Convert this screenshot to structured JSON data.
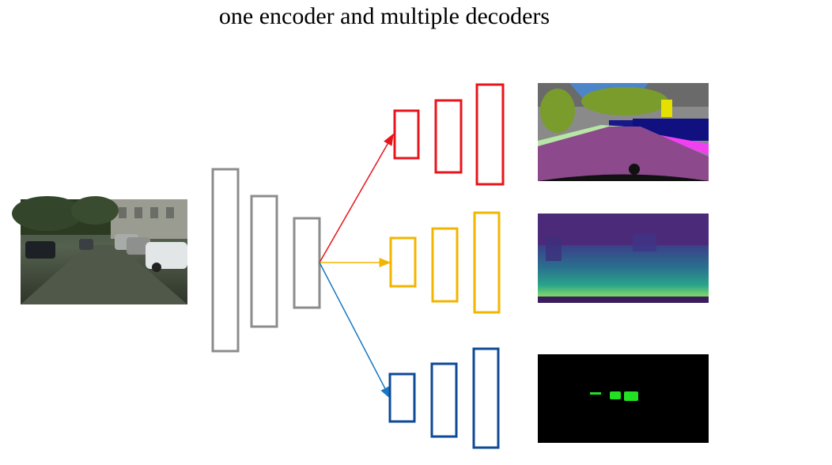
{
  "title": "one encoder and multiple decoders",
  "colors": {
    "encoder": "#8c8c8c",
    "decoder_segmentation": "#e8141b",
    "decoder_depth": "#f2b600",
    "decoder_detection": "#0e4a96",
    "arrow_segmentation": "#e8141b",
    "arrow_depth": "#f2b600",
    "arrow_detection": "#1a78c2"
  },
  "images": {
    "input": "street-scene-photo",
    "output_segmentation": "semantic-segmentation-map",
    "output_depth": "depth-map",
    "output_detection": "black-mask-with-green-blobs"
  }
}
